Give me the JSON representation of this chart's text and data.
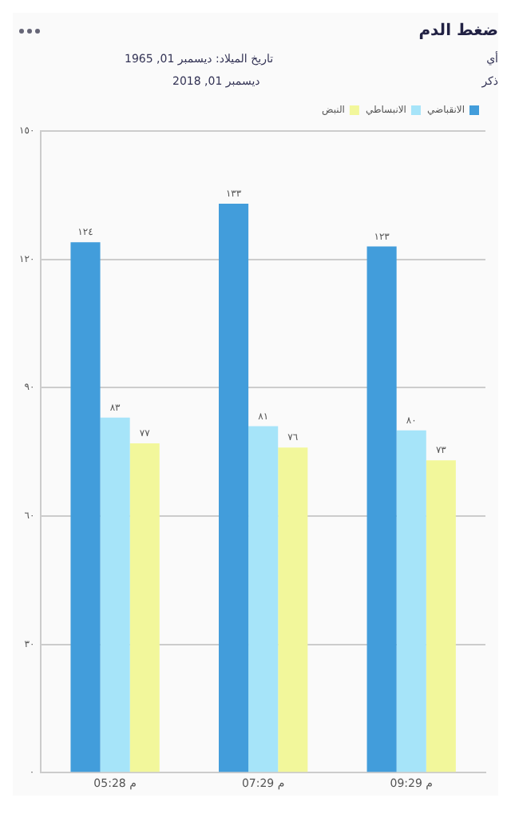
{
  "chart_data": {
    "type": "bar",
    "title": "ضغط الدم",
    "annotations": [
      "أي",
      "تاريخ الميلاد: ديسمبر 01, 1965",
      "ذكر",
      "ديسمبر 01, 2018"
    ],
    "categories": [
      "05:28 م",
      "07:29 م",
      "09:29 م"
    ],
    "series": [
      {
        "name": "الانقباضي",
        "color": "#429ddb",
        "values": [
          124,
          133,
          123
        ],
        "value_labels": [
          "١٢٤",
          "١٣٣",
          "١٢٣"
        ]
      },
      {
        "name": "الانبساطي",
        "color": "#a6e4f9",
        "values": [
          83,
          81,
          80
        ],
        "value_labels": [
          "٨٣",
          "٨١",
          "٨٠"
        ]
      },
      {
        "name": "النبض",
        "color": "#f2f79b",
        "values": [
          77,
          76,
          73
        ],
        "value_labels": [
          "٧٧",
          "٧٦",
          "٧٣"
        ]
      }
    ],
    "ylim": [
      0,
      150
    ],
    "yticks": [
      {
        "value": 0,
        "label": "٠"
      },
      {
        "value": 30,
        "label": "٣٠"
      },
      {
        "value": 60,
        "label": "٦٠"
      },
      {
        "value": 90,
        "label": "٩٠"
      },
      {
        "value": 120,
        "label": "١٢٠"
      },
      {
        "value": 150,
        "label": "١٥٠"
      }
    ],
    "grid": "y",
    "legend": "top right"
  }
}
